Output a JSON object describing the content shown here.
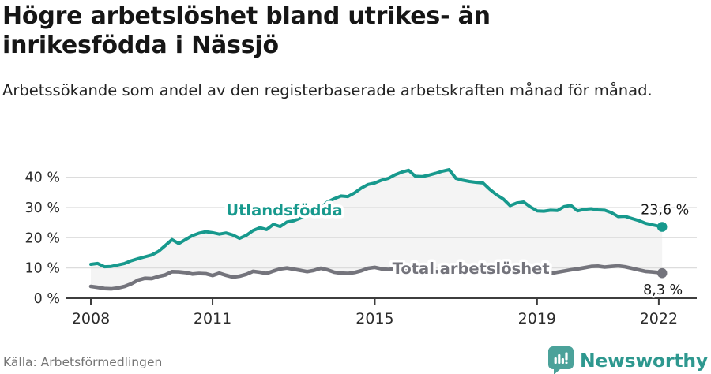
{
  "header": {
    "title": "Högre arbetslöshet bland utrikes- än inrikesfödda i Nässjö",
    "subtitle": "Arbetssökande som andel av den registerbaserade arbetskraften månad för månad."
  },
  "footer": {
    "source": "Källa: Arbetsförmedlingen",
    "brand": "Newsworthy",
    "brand_icon": "newsworthy-speech-bubble-bar-chart-icon"
  },
  "colors": {
    "accent_teal": "#17998D",
    "line_gray": "#74747C",
    "fill_between": "#F4F4F4",
    "grid": "#DCDCDC",
    "axis": "#3D3D3D",
    "tick_text": "#2C2C2C",
    "end_label_text": "#1A1A1A",
    "halo": "#FFFFFF",
    "source_text": "#757575",
    "brand_teal": "#2E988F",
    "brand_bubble": "#4BA29A"
  },
  "chart_data": {
    "type": "line",
    "title": "Högre arbetslöshet bland utrikes- än inrikesfödda i Nässjö",
    "xlabel": "",
    "ylabel": "",
    "grid": "horizontal",
    "legend": "inline-labels",
    "fill_between_series": true,
    "x_axis": {
      "tick_values": [
        2008,
        2011,
        2015,
        2019,
        2022
      ],
      "tick_labels": [
        "2008",
        "2011",
        "2015",
        "2019",
        "2022"
      ],
      "range": [
        2008,
        2022.083
      ]
    },
    "y_axis": {
      "tick_values": [
        0,
        10,
        20,
        30,
        40
      ],
      "tick_labels": [
        "0 %",
        "10 %",
        "20 %",
        "30 %",
        "40 %"
      ],
      "range": [
        0,
        44
      ]
    },
    "x": [
      2008,
      2008.167,
      2008.333,
      2008.5,
      2008.667,
      2008.833,
      2009,
      2009.167,
      2009.333,
      2009.5,
      2009.667,
      2009.833,
      2010,
      2010.167,
      2010.333,
      2010.5,
      2010.667,
      2010.833,
      2011,
      2011.167,
      2011.333,
      2011.5,
      2011.667,
      2011.833,
      2012,
      2012.167,
      2012.333,
      2012.5,
      2012.667,
      2012.833,
      2013,
      2013.167,
      2013.333,
      2013.5,
      2013.667,
      2013.833,
      2014,
      2014.167,
      2014.333,
      2014.5,
      2014.667,
      2014.833,
      2015,
      2015.167,
      2015.333,
      2015.5,
      2015.667,
      2015.833,
      2016,
      2016.167,
      2016.333,
      2016.5,
      2016.667,
      2016.833,
      2017,
      2017.167,
      2017.333,
      2017.5,
      2017.667,
      2017.833,
      2018,
      2018.167,
      2018.333,
      2018.5,
      2018.667,
      2018.833,
      2019,
      2019.167,
      2019.333,
      2019.5,
      2019.667,
      2019.833,
      2020,
      2020.167,
      2020.333,
      2020.5,
      2020.667,
      2020.833,
      2021,
      2021.167,
      2021.333,
      2021.5,
      2021.667,
      2021.833,
      2022,
      2022.083
    ],
    "series": [
      {
        "name": "Utlandsfödda",
        "color": "#17998D",
        "end_label": "23,6 %",
        "last_value": 23.6,
        "label_pos": {
          "x": 2012.77,
          "y": 29.2
        },
        "values": [
          11.2,
          11.5,
          10.4,
          10.5,
          11.0,
          11.5,
          12.4,
          13.1,
          13.7,
          14.3,
          15.5,
          17.4,
          19.4,
          18.1,
          19.4,
          20.7,
          21.5,
          22.0,
          21.7,
          21.2,
          21.6,
          20.9,
          19.8,
          20.8,
          22.4,
          23.3,
          22.7,
          24.4,
          23.7,
          25.2,
          25.6,
          26.5,
          27.5,
          28.6,
          29.8,
          31.8,
          32.9,
          33.8,
          33.6,
          34.8,
          36.4,
          37.6,
          38.1,
          39.0,
          39.6,
          40.8,
          41.7,
          42.3,
          40.3,
          40.2,
          40.7,
          41.3,
          42.0,
          42.5,
          39.6,
          39.0,
          38.6,
          38.3,
          38.1,
          36.0,
          34.2,
          32.8,
          30.6,
          31.5,
          31.8,
          30.2,
          28.9,
          28.8,
          29.1,
          29.0,
          30.3,
          30.7,
          28.9,
          29.4,
          29.6,
          29.2,
          29.1,
          28.3,
          27.0,
          27.1,
          26.4,
          25.7,
          24.8,
          24.3,
          23.8,
          23.6
        ]
      },
      {
        "name": "Total arbetslöshet",
        "color": "#74747C",
        "end_label": "8,3 %",
        "last_value": 8.3,
        "label_pos": {
          "x": 2017.37,
          "y": 9.9
        },
        "values": [
          3.9,
          3.6,
          3.2,
          3.1,
          3.4,
          3.9,
          4.8,
          6.0,
          6.6,
          6.5,
          7.2,
          7.7,
          8.8,
          8.7,
          8.5,
          8.0,
          8.2,
          8.1,
          7.5,
          8.3,
          7.6,
          7.0,
          7.3,
          7.9,
          8.9,
          8.6,
          8.2,
          9.0,
          9.7,
          10.0,
          9.6,
          9.2,
          8.8,
          9.2,
          9.9,
          9.4,
          8.6,
          8.3,
          8.2,
          8.5,
          9.1,
          9.9,
          10.2,
          9.7,
          9.5,
          9.7,
          9.5,
          9.3,
          9.2,
          9.0,
          8.9,
          8.8,
          8.7,
          8.6,
          8.5,
          8.4,
          8.4,
          8.3,
          8.3,
          8.2,
          8.2,
          8.1,
          8.1,
          8.0,
          8.0,
          8.1,
          8.1,
          8.2,
          8.2,
          8.6,
          9.0,
          9.4,
          9.7,
          10.1,
          10.5,
          10.6,
          10.3,
          10.5,
          10.7,
          10.4,
          9.9,
          9.4,
          8.9,
          8.7,
          8.5,
          8.3
        ]
      }
    ]
  }
}
